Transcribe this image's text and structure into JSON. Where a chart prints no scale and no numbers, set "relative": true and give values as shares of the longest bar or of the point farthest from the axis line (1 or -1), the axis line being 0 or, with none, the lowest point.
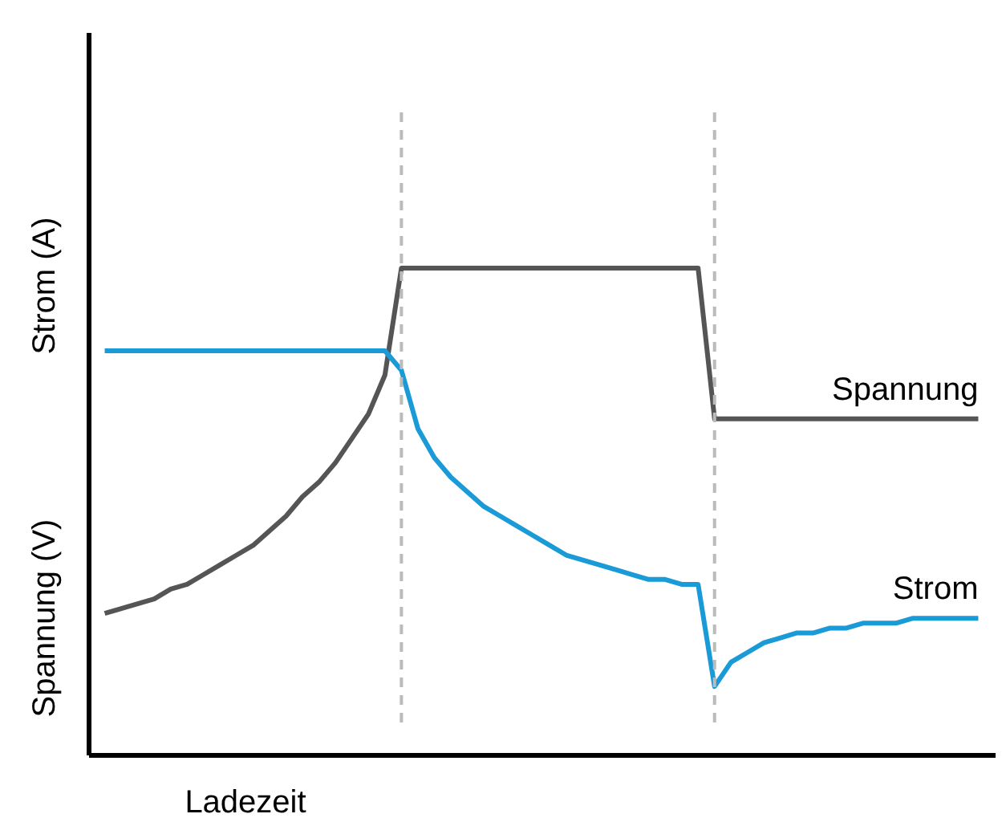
{
  "chart_data": {
    "type": "line",
    "relative": true,
    "xlabel": "Ladezeit",
    "ylabel": "Spannung (V)",
    "annotations": [
      "Strom (A)"
    ],
    "tick_labels": false,
    "grid": false,
    "legend": false,
    "marker": "none",
    "line_style": "solid",
    "categories": [
      null,
      null,
      null,
      null,
      null,
      null,
      null,
      null,
      null,
      null,
      null,
      null,
      null,
      null,
      null,
      null,
      null,
      null,
      null,
      null,
      null,
      null,
      null,
      null,
      null,
      null,
      null,
      null,
      null,
      null,
      null,
      null,
      null,
      null,
      null,
      null,
      null,
      null,
      null,
      null,
      null,
      null,
      null,
      null,
      null,
      null,
      null,
      null,
      null,
      null,
      null,
      null,
      null,
      null
    ],
    "series": [
      {
        "name": "Spannung",
        "color": "#555555",
        "values": [
          0.29,
          0.3,
          0.31,
          0.32,
          0.34,
          0.35,
          0.37,
          0.39,
          0.41,
          0.43,
          0.46,
          0.49,
          0.53,
          0.56,
          0.6,
          0.65,
          0.7,
          0.78,
          1,
          1,
          1,
          1,
          1,
          1,
          1,
          1,
          1,
          1,
          1,
          1,
          1,
          1,
          1,
          1,
          1,
          1,
          1,
          0.69,
          0.69,
          0.69,
          0.69,
          0.69,
          0.69,
          0.69,
          0.69,
          0.69,
          0.69,
          0.69,
          0.69,
          0.69,
          0.69,
          0.69,
          0.69,
          0.69
        ]
      },
      {
        "name": "Strom",
        "color": "#1a9ad6",
        "values": [
          0.83,
          0.83,
          0.83,
          0.83,
          0.83,
          0.83,
          0.83,
          0.83,
          0.83,
          0.83,
          0.83,
          0.83,
          0.83,
          0.83,
          0.83,
          0.83,
          0.83,
          0.83,
          0.79,
          0.67,
          0.61,
          0.57,
          0.54,
          0.51,
          0.49,
          0.47,
          0.45,
          0.43,
          0.41,
          0.4,
          0.39,
          0.38,
          0.37,
          0.36,
          0.36,
          0.35,
          0.35,
          0.14,
          0.19,
          0.21,
          0.23,
          0.24,
          0.25,
          0.25,
          0.26,
          0.26,
          0.27,
          0.27,
          0.27,
          0.28,
          0.28,
          0.28,
          0.28,
          0.28
        ]
      }
    ]
  }
}
